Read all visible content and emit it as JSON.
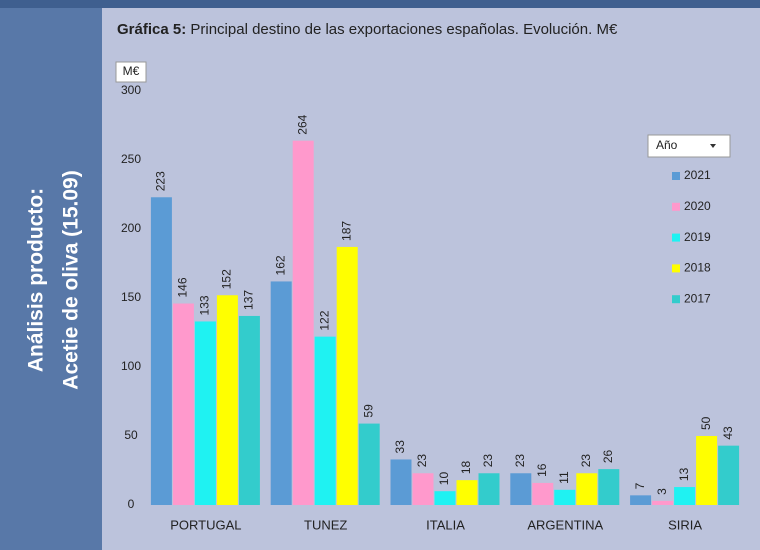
{
  "sidebar": {
    "lines": [
      "Análisis producto:",
      "Acetie de oliva (15.09)"
    ]
  },
  "chart_data": {
    "type": "bar",
    "title_label": "Gráfica 5:",
    "title": "Principal destino de las exportaciones españolas. Evolución. M€",
    "y_label": "M€",
    "legend_title": "Año",
    "categories": [
      "PORTUGAL",
      "TUNEZ",
      "ITALIA",
      "ARGENTINA",
      "SIRIA"
    ],
    "series": [
      {
        "name": "2021",
        "color": "#5b9bd5",
        "values": [
          223,
          162,
          33,
          23,
          7
        ]
      },
      {
        "name": "2020",
        "color": "#ff99cc",
        "values": [
          146,
          264,
          23,
          16,
          3
        ]
      },
      {
        "name": "2019",
        "color": "#1ff2f2",
        "values": [
          133,
          122,
          10,
          11,
          13
        ]
      },
      {
        "name": "2018",
        "color": "#ffff00",
        "values": [
          152,
          187,
          18,
          23,
          50
        ]
      },
      {
        "name": "2017",
        "color": "#33cccc",
        "values": [
          137,
          59,
          23,
          26,
          43
        ]
      }
    ],
    "ylim": [
      0,
      300
    ],
    "yticks": [
      0,
      50,
      100,
      150,
      200,
      250,
      300
    ],
    "legend": "right"
  }
}
